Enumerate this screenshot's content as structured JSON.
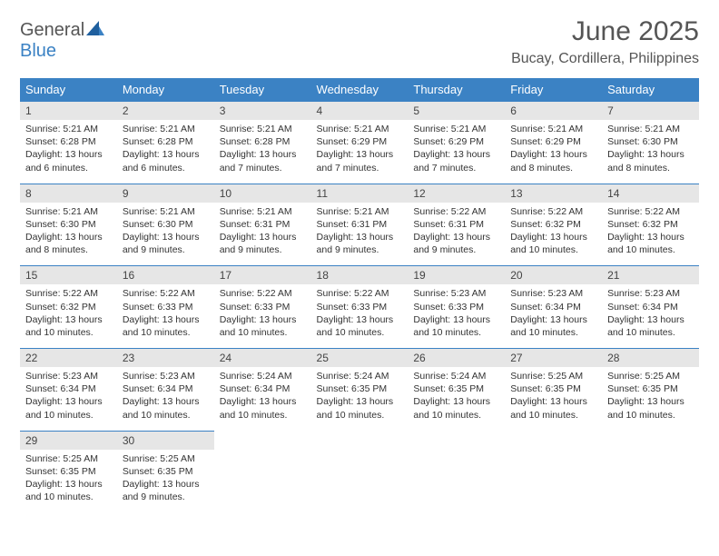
{
  "logo": {
    "general": "General",
    "blue": "Blue"
  },
  "title": "June 2025",
  "subtitle": "Bucay, Cordillera, Philippines",
  "colors": {
    "header_bg": "#3b82c4",
    "header_text": "#ffffff",
    "daynum_bg": "#e6e6e6",
    "text": "#333333",
    "rule": "#3b82c4"
  },
  "fonts": {
    "title_size": 30,
    "subtitle_size": 16,
    "header_size": 13,
    "daynum_size": 12,
    "body_size": 10.5
  },
  "days_of_week": [
    "Sunday",
    "Monday",
    "Tuesday",
    "Wednesday",
    "Thursday",
    "Friday",
    "Saturday"
  ],
  "weeks": [
    [
      {
        "n": "1",
        "sunrise": "Sunrise: 5:21 AM",
        "sunset": "Sunset: 6:28 PM",
        "daylight": "Daylight: 13 hours and 6 minutes."
      },
      {
        "n": "2",
        "sunrise": "Sunrise: 5:21 AM",
        "sunset": "Sunset: 6:28 PM",
        "daylight": "Daylight: 13 hours and 6 minutes."
      },
      {
        "n": "3",
        "sunrise": "Sunrise: 5:21 AM",
        "sunset": "Sunset: 6:28 PM",
        "daylight": "Daylight: 13 hours and 7 minutes."
      },
      {
        "n": "4",
        "sunrise": "Sunrise: 5:21 AM",
        "sunset": "Sunset: 6:29 PM",
        "daylight": "Daylight: 13 hours and 7 minutes."
      },
      {
        "n": "5",
        "sunrise": "Sunrise: 5:21 AM",
        "sunset": "Sunset: 6:29 PM",
        "daylight": "Daylight: 13 hours and 7 minutes."
      },
      {
        "n": "6",
        "sunrise": "Sunrise: 5:21 AM",
        "sunset": "Sunset: 6:29 PM",
        "daylight": "Daylight: 13 hours and 8 minutes."
      },
      {
        "n": "7",
        "sunrise": "Sunrise: 5:21 AM",
        "sunset": "Sunset: 6:30 PM",
        "daylight": "Daylight: 13 hours and 8 minutes."
      }
    ],
    [
      {
        "n": "8",
        "sunrise": "Sunrise: 5:21 AM",
        "sunset": "Sunset: 6:30 PM",
        "daylight": "Daylight: 13 hours and 8 minutes."
      },
      {
        "n": "9",
        "sunrise": "Sunrise: 5:21 AM",
        "sunset": "Sunset: 6:30 PM",
        "daylight": "Daylight: 13 hours and 9 minutes."
      },
      {
        "n": "10",
        "sunrise": "Sunrise: 5:21 AM",
        "sunset": "Sunset: 6:31 PM",
        "daylight": "Daylight: 13 hours and 9 minutes."
      },
      {
        "n": "11",
        "sunrise": "Sunrise: 5:21 AM",
        "sunset": "Sunset: 6:31 PM",
        "daylight": "Daylight: 13 hours and 9 minutes."
      },
      {
        "n": "12",
        "sunrise": "Sunrise: 5:22 AM",
        "sunset": "Sunset: 6:31 PM",
        "daylight": "Daylight: 13 hours and 9 minutes."
      },
      {
        "n": "13",
        "sunrise": "Sunrise: 5:22 AM",
        "sunset": "Sunset: 6:32 PM",
        "daylight": "Daylight: 13 hours and 10 minutes."
      },
      {
        "n": "14",
        "sunrise": "Sunrise: 5:22 AM",
        "sunset": "Sunset: 6:32 PM",
        "daylight": "Daylight: 13 hours and 10 minutes."
      }
    ],
    [
      {
        "n": "15",
        "sunrise": "Sunrise: 5:22 AM",
        "sunset": "Sunset: 6:32 PM",
        "daylight": "Daylight: 13 hours and 10 minutes."
      },
      {
        "n": "16",
        "sunrise": "Sunrise: 5:22 AM",
        "sunset": "Sunset: 6:33 PM",
        "daylight": "Daylight: 13 hours and 10 minutes."
      },
      {
        "n": "17",
        "sunrise": "Sunrise: 5:22 AM",
        "sunset": "Sunset: 6:33 PM",
        "daylight": "Daylight: 13 hours and 10 minutes."
      },
      {
        "n": "18",
        "sunrise": "Sunrise: 5:22 AM",
        "sunset": "Sunset: 6:33 PM",
        "daylight": "Daylight: 13 hours and 10 minutes."
      },
      {
        "n": "19",
        "sunrise": "Sunrise: 5:23 AM",
        "sunset": "Sunset: 6:33 PM",
        "daylight": "Daylight: 13 hours and 10 minutes."
      },
      {
        "n": "20",
        "sunrise": "Sunrise: 5:23 AM",
        "sunset": "Sunset: 6:34 PM",
        "daylight": "Daylight: 13 hours and 10 minutes."
      },
      {
        "n": "21",
        "sunrise": "Sunrise: 5:23 AM",
        "sunset": "Sunset: 6:34 PM",
        "daylight": "Daylight: 13 hours and 10 minutes."
      }
    ],
    [
      {
        "n": "22",
        "sunrise": "Sunrise: 5:23 AM",
        "sunset": "Sunset: 6:34 PM",
        "daylight": "Daylight: 13 hours and 10 minutes."
      },
      {
        "n": "23",
        "sunrise": "Sunrise: 5:23 AM",
        "sunset": "Sunset: 6:34 PM",
        "daylight": "Daylight: 13 hours and 10 minutes."
      },
      {
        "n": "24",
        "sunrise": "Sunrise: 5:24 AM",
        "sunset": "Sunset: 6:34 PM",
        "daylight": "Daylight: 13 hours and 10 minutes."
      },
      {
        "n": "25",
        "sunrise": "Sunrise: 5:24 AM",
        "sunset": "Sunset: 6:35 PM",
        "daylight": "Daylight: 13 hours and 10 minutes."
      },
      {
        "n": "26",
        "sunrise": "Sunrise: 5:24 AM",
        "sunset": "Sunset: 6:35 PM",
        "daylight": "Daylight: 13 hours and 10 minutes."
      },
      {
        "n": "27",
        "sunrise": "Sunrise: 5:25 AM",
        "sunset": "Sunset: 6:35 PM",
        "daylight": "Daylight: 13 hours and 10 minutes."
      },
      {
        "n": "28",
        "sunrise": "Sunrise: 5:25 AM",
        "sunset": "Sunset: 6:35 PM",
        "daylight": "Daylight: 13 hours and 10 minutes."
      }
    ],
    [
      {
        "n": "29",
        "sunrise": "Sunrise: 5:25 AM",
        "sunset": "Sunset: 6:35 PM",
        "daylight": "Daylight: 13 hours and 10 minutes."
      },
      {
        "n": "30",
        "sunrise": "Sunrise: 5:25 AM",
        "sunset": "Sunset: 6:35 PM",
        "daylight": "Daylight: 13 hours and 9 minutes."
      },
      null,
      null,
      null,
      null,
      null
    ]
  ]
}
